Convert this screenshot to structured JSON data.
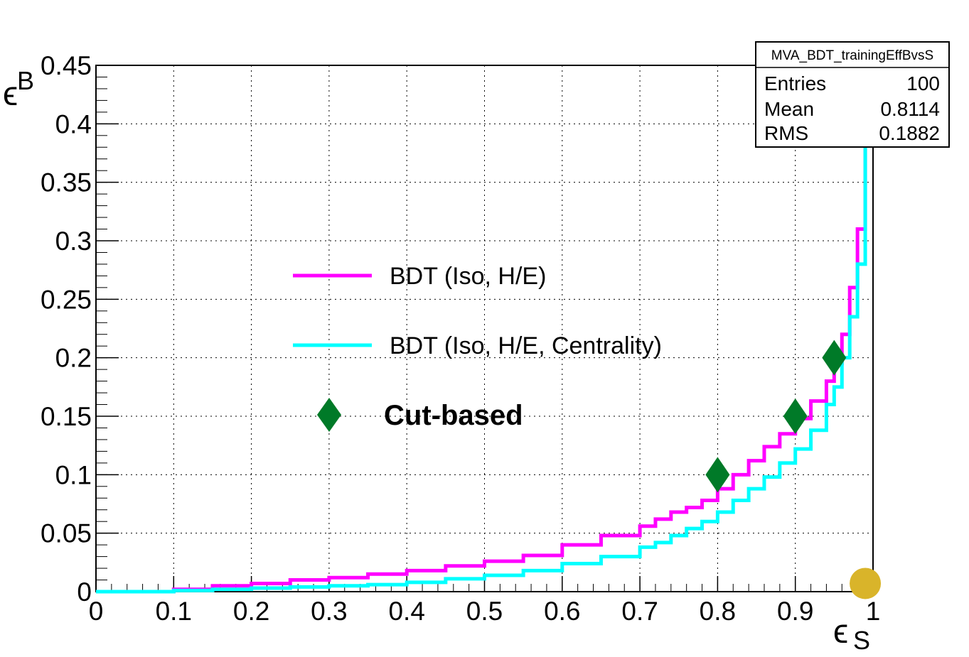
{
  "chart_data": {
    "type": "line",
    "xlabel_main": "ϵ",
    "xlabel_sub": "S",
    "ylabel_main": "ϵ",
    "ylabel_sub": "B",
    "xlim": [
      0,
      1
    ],
    "ylim": [
      0,
      0.45
    ],
    "grid": true,
    "x_ticks": [
      "0",
      "0.1",
      "0.2",
      "0.3",
      "0.4",
      "0.5",
      "0.6",
      "0.7",
      "0.8",
      "0.9",
      "1"
    ],
    "y_ticks": [
      "0",
      "0.05",
      "0.1",
      "0.15",
      "0.2",
      "0.25",
      "0.3",
      "0.35",
      "0.4",
      "0.45"
    ],
    "legend_position": "center-left",
    "series": [
      {
        "name": "BDT (Iso, H/E)",
        "color": "#ff00ff",
        "style": "step",
        "x": [
          0,
          0.05,
          0.1,
          0.15,
          0.2,
          0.25,
          0.3,
          0.35,
          0.4,
          0.45,
          0.5,
          0.55,
          0.6,
          0.65,
          0.7,
          0.72,
          0.74,
          0.76,
          0.78,
          0.8,
          0.82,
          0.84,
          0.86,
          0.88,
          0.9,
          0.92,
          0.94,
          0.95,
          0.96,
          0.97,
          0.98,
          0.99,
          1.0
        ],
        "y": [
          0,
          0,
          0.002,
          0.005,
          0.007,
          0.01,
          0.012,
          0.015,
          0.018,
          0.022,
          0.026,
          0.031,
          0.04,
          0.048,
          0.056,
          0.062,
          0.068,
          0.072,
          0.078,
          0.088,
          0.1,
          0.112,
          0.124,
          0.135,
          0.148,
          0.163,
          0.18,
          0.195,
          0.22,
          0.26,
          0.31,
          0.41,
          0.41
        ]
      },
      {
        "name": "BDT (Iso, H/E, Centrality)",
        "color": "#00ffff",
        "style": "step",
        "x": [
          0,
          0.05,
          0.1,
          0.15,
          0.2,
          0.25,
          0.3,
          0.35,
          0.4,
          0.45,
          0.5,
          0.55,
          0.6,
          0.65,
          0.7,
          0.72,
          0.74,
          0.76,
          0.78,
          0.8,
          0.82,
          0.84,
          0.86,
          0.88,
          0.9,
          0.92,
          0.94,
          0.95,
          0.96,
          0.97,
          0.98,
          0.99,
          1.0
        ],
        "y": [
          0,
          0,
          0.001,
          0.002,
          0.003,
          0.004,
          0.005,
          0.006,
          0.008,
          0.011,
          0.014,
          0.018,
          0.024,
          0.03,
          0.038,
          0.042,
          0.048,
          0.054,
          0.06,
          0.068,
          0.078,
          0.088,
          0.098,
          0.11,
          0.122,
          0.138,
          0.16,
          0.175,
          0.2,
          0.235,
          0.28,
          0.405,
          0.405
        ]
      },
      {
        "name": "Cut-based",
        "color": "#007a28",
        "style": "marker-diamond",
        "x": [
          0.8,
          0.9,
          0.95
        ],
        "y": [
          0.1,
          0.15,
          0.2
        ]
      },
      {
        "name": "",
        "color": "#d9b42a",
        "style": "marker-circle",
        "x": [
          0.99
        ],
        "y": [
          0.007
        ]
      }
    ],
    "stats_box": {
      "title": "MVA_BDT_trainingEffBvsS",
      "rows": [
        {
          "label": "Entries",
          "value": "100"
        },
        {
          "label": "Mean",
          "value": "0.8114"
        },
        {
          "label": "RMS",
          "value": "0.1882"
        }
      ]
    }
  }
}
